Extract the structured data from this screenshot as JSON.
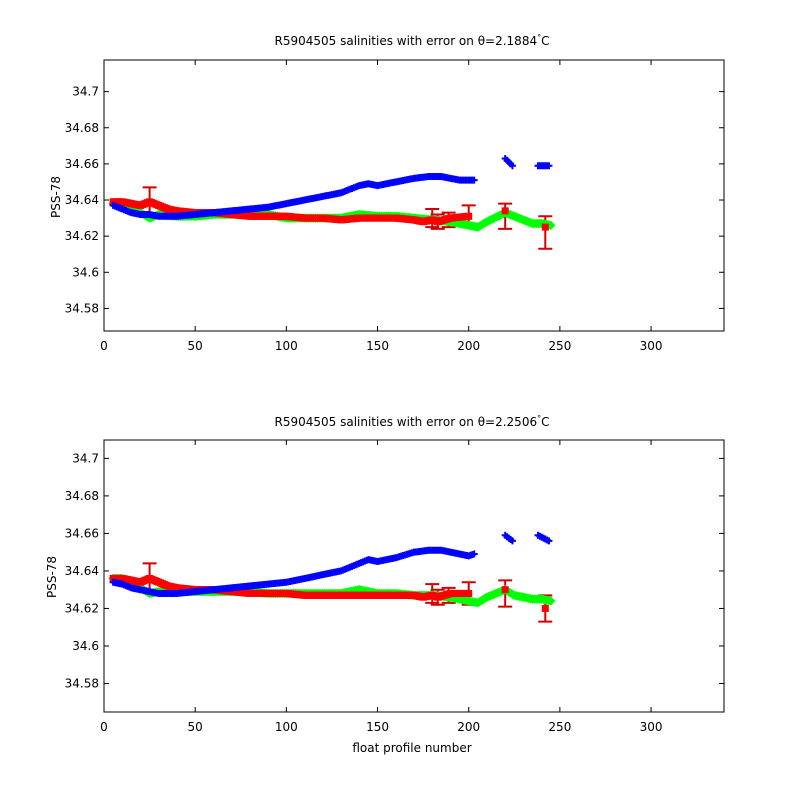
{
  "figure": {
    "xlabel": "float profile number"
  },
  "colors": {
    "blue": "#0000ff",
    "red": "#ff0000",
    "green": "#00ff00",
    "errorbar": "#d40000",
    "axes": "#000000",
    "background": "#ffffff"
  },
  "chart_data": [
    {
      "type": "scatter",
      "title": "R5904505 salinities with error on θ=2.1884°C",
      "title_main": "R5904505 salinities with error on θ=2.1884",
      "title_degree": "°",
      "title_unit": "C",
      "xlabel": "",
      "ylabel": "PSS-78",
      "xlim": [
        0,
        340
      ],
      "ylim": [
        34.5675,
        34.7175
      ],
      "xticks": [
        0,
        50,
        100,
        150,
        200,
        250,
        300
      ],
      "yticks": [
        34.58,
        34.6,
        34.62,
        34.64,
        34.66,
        34.68,
        34.7
      ],
      "ytick_labels": [
        "34.58",
        "34.6",
        "34.62",
        "34.64",
        "34.66",
        "34.68",
        "34.7"
      ],
      "grid": false,
      "series": [
        {
          "color": "blue",
          "marker": "plus",
          "x": [
            5,
            10,
            15,
            20,
            25,
            30,
            40,
            50,
            60,
            70,
            80,
            90,
            100,
            110,
            120,
            130,
            140,
            145,
            150,
            160,
            170,
            178,
            185,
            195,
            200,
            203,
            220,
            224,
            238,
            244
          ],
          "y": [
            34.637,
            34.635,
            34.633,
            34.632,
            34.632,
            34.631,
            34.631,
            34.632,
            34.633,
            34.634,
            34.635,
            34.636,
            34.638,
            34.64,
            34.642,
            34.644,
            34.648,
            34.649,
            34.648,
            34.65,
            34.652,
            34.653,
            34.653,
            34.651,
            34.651,
            34.651,
            34.663,
            34.659,
            34.659,
            34.659
          ]
        },
        {
          "color": "green",
          "marker": "diamond",
          "x": [
            5,
            10,
            15,
            20,
            25,
            30,
            40,
            50,
            60,
            70,
            80,
            90,
            100,
            110,
            120,
            130,
            140,
            150,
            160,
            170,
            180,
            190,
            200,
            205,
            210,
            220,
            225,
            235,
            240,
            245
          ],
          "y": [
            34.638,
            34.638,
            34.637,
            34.633,
            34.63,
            34.632,
            34.631,
            34.631,
            34.632,
            34.632,
            34.632,
            34.632,
            34.63,
            34.63,
            34.63,
            34.63,
            34.632,
            34.631,
            34.631,
            34.63,
            34.629,
            34.628,
            34.626,
            34.625,
            34.628,
            34.633,
            34.631,
            34.627,
            34.627,
            34.626
          ]
        },
        {
          "color": "red",
          "marker": "square",
          "x": [
            5,
            10,
            15,
            20,
            25,
            30,
            35,
            40,
            50,
            60,
            70,
            80,
            90,
            100,
            110,
            120,
            130,
            140,
            150,
            160,
            170,
            175,
            180,
            183,
            190,
            200,
            220,
            242
          ],
          "y": [
            34.639,
            34.639,
            34.638,
            34.637,
            34.639,
            34.637,
            34.635,
            34.634,
            34.633,
            34.633,
            34.632,
            34.631,
            34.631,
            34.631,
            34.63,
            34.63,
            34.629,
            34.63,
            34.63,
            34.63,
            34.629,
            34.628,
            34.629,
            34.628,
            34.63,
            34.631,
            34.634,
            34.625
          ]
        }
      ],
      "error_bars": [
        {
          "x": 25,
          "y": 34.639,
          "err": 0.008
        },
        {
          "x": 180,
          "y": 34.63,
          "err": 0.005
        },
        {
          "x": 183,
          "y": 34.628,
          "err": 0.004
        },
        {
          "x": 189,
          "y": 34.629,
          "err": 0.004
        },
        {
          "x": 200,
          "y": 34.631,
          "err": 0.006
        },
        {
          "x": 220,
          "y": 34.631,
          "err": 0.007
        },
        {
          "x": 242,
          "y": 34.622,
          "err": 0.009
        }
      ]
    },
    {
      "type": "scatter",
      "title": "R5904505 salinities with error on θ=2.2506°C",
      "title_main": "R5904505 salinities with error on θ=2.2506",
      "title_degree": "°",
      "title_unit": "C",
      "xlabel": "float profile number",
      "ylabel": "PSS-78",
      "xlim": [
        0,
        340
      ],
      "ylim": [
        34.5648,
        34.7098
      ],
      "xticks": [
        0,
        50,
        100,
        150,
        200,
        250,
        300
      ],
      "yticks": [
        34.58,
        34.6,
        34.62,
        34.64,
        34.66,
        34.68,
        34.7
      ],
      "ytick_labels": [
        "34.58",
        "34.6",
        "34.62",
        "34.64",
        "34.66",
        "34.68",
        "34.7"
      ],
      "grid": false,
      "series": [
        {
          "color": "blue",
          "marker": "plus",
          "x": [
            5,
            10,
            15,
            20,
            25,
            30,
            40,
            50,
            60,
            70,
            80,
            90,
            100,
            110,
            120,
            130,
            140,
            145,
            150,
            160,
            170,
            178,
            185,
            195,
            200,
            203,
            220,
            224,
            238,
            244
          ],
          "y": [
            34.634,
            34.633,
            34.631,
            34.63,
            34.629,
            34.628,
            34.628,
            34.629,
            34.63,
            34.631,
            34.632,
            34.633,
            34.634,
            34.636,
            34.638,
            34.64,
            34.644,
            34.646,
            34.645,
            34.647,
            34.65,
            34.651,
            34.651,
            34.649,
            34.648,
            34.649,
            34.659,
            34.656,
            34.659,
            34.656
          ]
        },
        {
          "color": "green",
          "marker": "diamond",
          "x": [
            5,
            10,
            15,
            20,
            25,
            30,
            40,
            50,
            60,
            70,
            80,
            90,
            100,
            110,
            120,
            130,
            140,
            150,
            160,
            170,
            180,
            190,
            200,
            205,
            210,
            220,
            225,
            235,
            240,
            245
          ],
          "y": [
            34.636,
            34.636,
            34.634,
            34.631,
            34.628,
            34.629,
            34.629,
            34.629,
            34.629,
            34.629,
            34.629,
            34.628,
            34.628,
            34.628,
            34.628,
            34.628,
            34.63,
            34.628,
            34.628,
            34.627,
            34.627,
            34.626,
            34.624,
            34.623,
            34.626,
            34.63,
            34.627,
            34.625,
            34.625,
            34.624
          ]
        },
        {
          "color": "red",
          "marker": "square",
          "x": [
            5,
            10,
            15,
            20,
            25,
            30,
            35,
            40,
            50,
            60,
            70,
            80,
            90,
            100,
            110,
            120,
            130,
            140,
            150,
            160,
            170,
            175,
            180,
            183,
            190,
            200,
            220,
            242
          ],
          "y": [
            34.636,
            34.636,
            34.635,
            34.634,
            34.636,
            34.634,
            34.632,
            34.631,
            34.63,
            34.63,
            34.629,
            34.628,
            34.628,
            34.628,
            34.627,
            34.627,
            34.627,
            34.627,
            34.627,
            34.627,
            34.627,
            34.626,
            34.627,
            34.626,
            34.628,
            34.628,
            34.63,
            34.62
          ]
        }
      ],
      "error_bars": [
        {
          "x": 25,
          "y": 34.637,
          "err": 0.007
        },
        {
          "x": 180,
          "y": 34.628,
          "err": 0.005
        },
        {
          "x": 183,
          "y": 34.626,
          "err": 0.004
        },
        {
          "x": 189,
          "y": 34.627,
          "err": 0.004
        },
        {
          "x": 200,
          "y": 34.628,
          "err": 0.006
        },
        {
          "x": 220,
          "y": 34.628,
          "err": 0.007
        },
        {
          "x": 242,
          "y": 34.62,
          "err": 0.007
        }
      ]
    }
  ]
}
